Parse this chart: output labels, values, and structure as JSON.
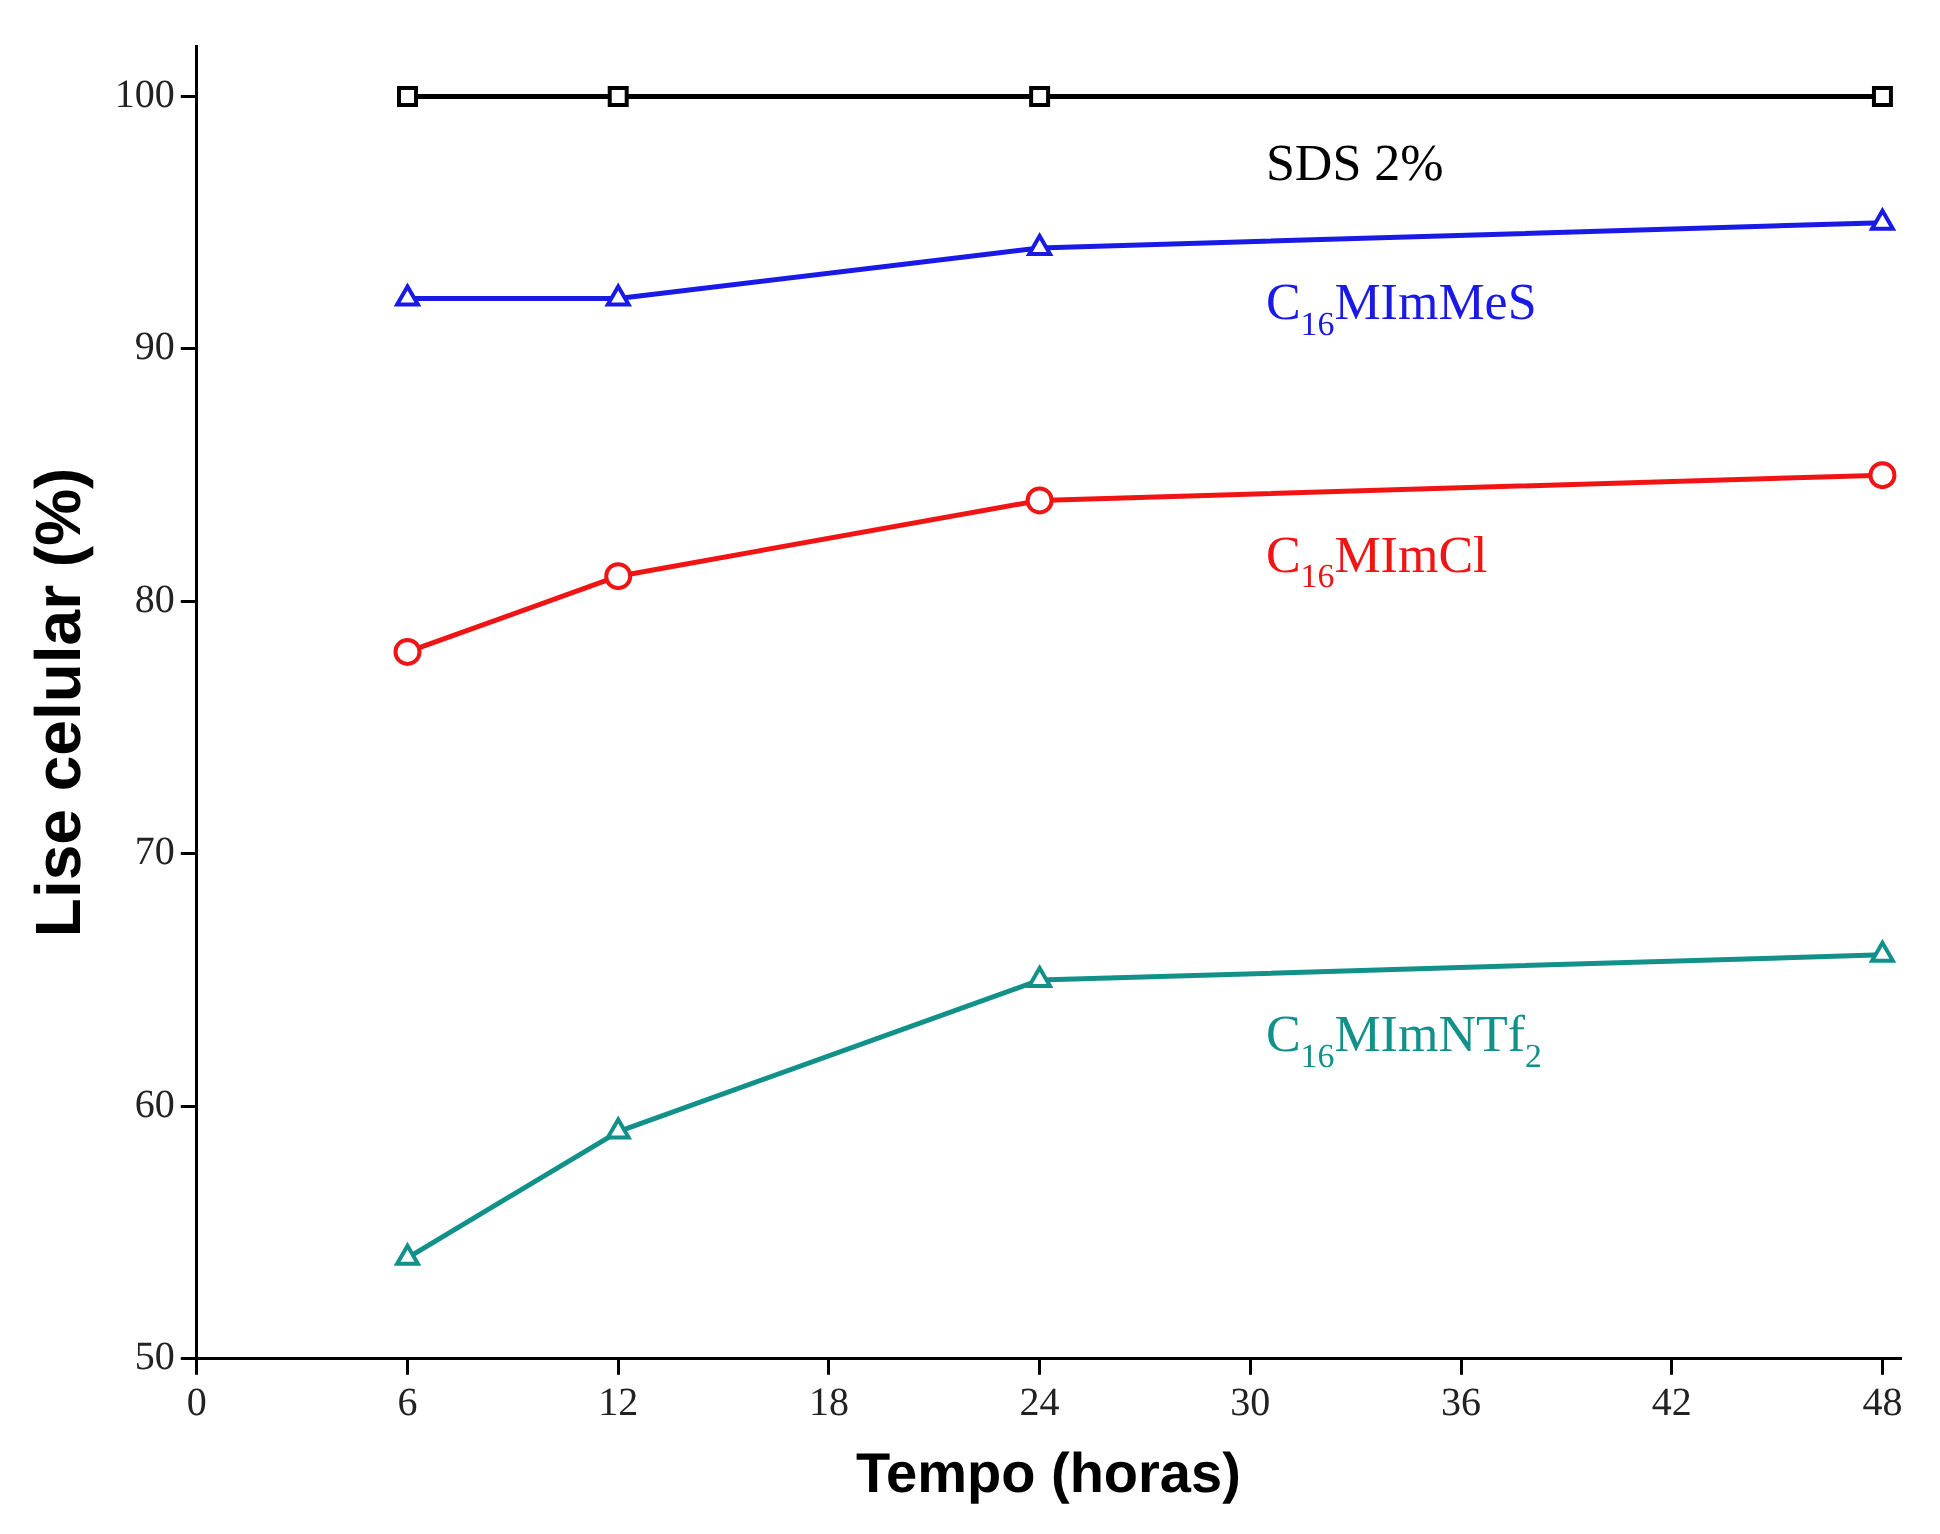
{
  "chart_data": {
    "type": "line",
    "xlabel": "Tempo (horas)",
    "ylabel": "Lise celular (%)",
    "x": [
      6,
      12,
      24,
      48
    ],
    "series": [
      {
        "name": "SDS 2%",
        "color": "#000000",
        "marker": "square",
        "values": [
          100,
          100,
          100,
          100
        ]
      },
      {
        "name": "C$_{16}$MImMeS",
        "color": "#1a1ae6",
        "marker": "triangle",
        "values": [
          92,
          92,
          94,
          95
        ]
      },
      {
        "name": "C$_{16}$MImCl",
        "color": "#f01414",
        "marker": "circle",
        "values": [
          78,
          81,
          84,
          85
        ]
      },
      {
        "name": "C$_{16}$MImNTf$_{2}$",
        "color": "#12908a",
        "marker": "triangle",
        "values": [
          54,
          59,
          65,
          66
        ]
      }
    ],
    "xlim": [
      0,
      48.5
    ],
    "xticks": [
      0,
      6,
      12,
      18,
      24,
      30,
      36,
      42,
      48
    ],
    "ylim": [
      50,
      102
    ],
    "yticks": [
      50,
      60,
      70,
      80,
      90,
      100
    ],
    "grid": false,
    "legend": false,
    "line_style": "solid"
  }
}
